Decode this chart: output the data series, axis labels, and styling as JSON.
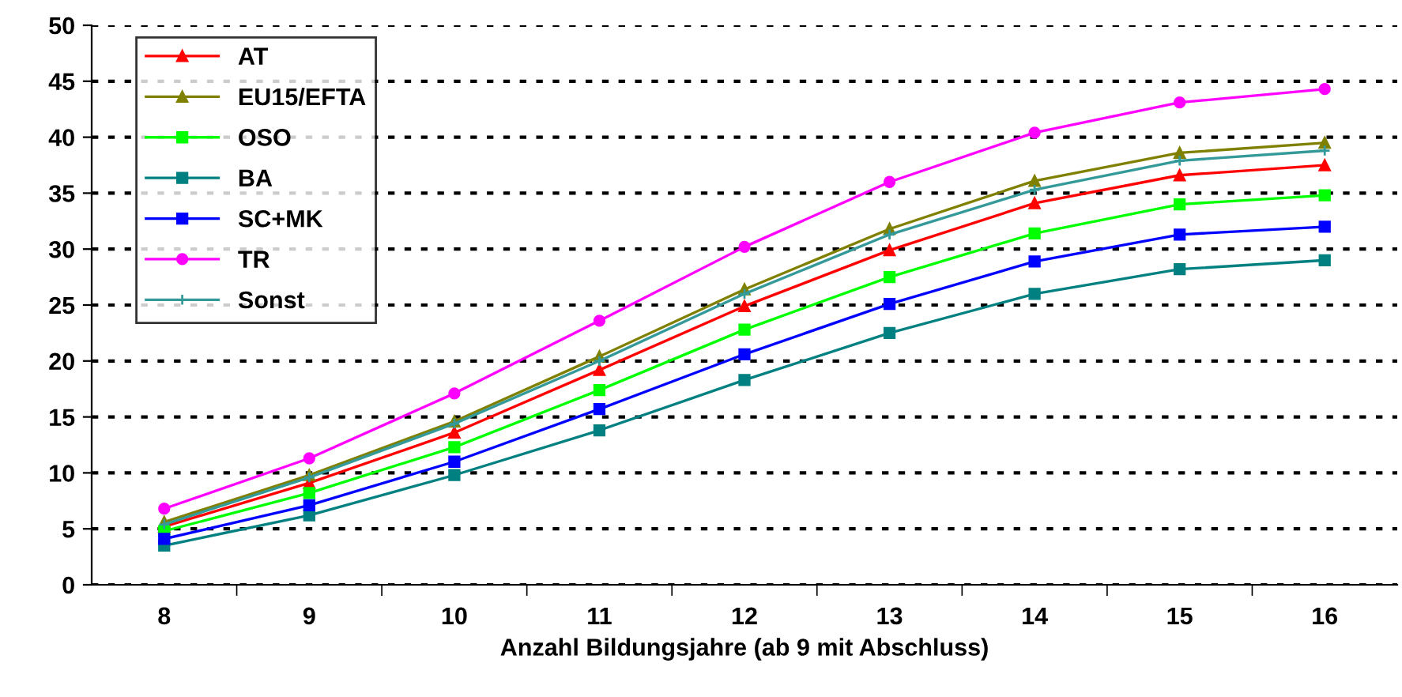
{
  "chart_data": {
    "type": "line",
    "xlabel": "Anzahl Bildungsjahre (ab 9 mit Abschluss)",
    "categories": [
      "8",
      "9",
      "10",
      "11",
      "12",
      "13",
      "14",
      "15",
      "16"
    ],
    "series": [
      {
        "name": "AT",
        "color": "#ff0000",
        "marker": "triangle",
        "values": [
          5.2,
          9.1,
          13.6,
          19.2,
          24.9,
          29.9,
          34.1,
          36.6,
          37.5
        ]
      },
      {
        "name": "EU15/EFTA",
        "color": "#808000",
        "marker": "triangle",
        "values": [
          5.6,
          9.8,
          14.6,
          20.4,
          26.4,
          31.8,
          36.1,
          38.6,
          39.5
        ]
      },
      {
        "name": "OSO",
        "color": "#00ff00",
        "marker": "square",
        "values": [
          4.8,
          8.2,
          12.3,
          17.4,
          22.8,
          27.5,
          31.4,
          34.0,
          34.8
        ]
      },
      {
        "name": "BA",
        "color": "#008080",
        "marker": "square",
        "values": [
          3.5,
          6.2,
          9.8,
          13.8,
          18.3,
          22.5,
          26.0,
          28.2,
          29.0
        ]
      },
      {
        "name": "SC+MK",
        "color": "#0000ff",
        "marker": "square",
        "values": [
          4.1,
          7.1,
          11.0,
          15.7,
          20.6,
          25.1,
          28.9,
          31.3,
          32.0
        ]
      },
      {
        "name": "TR",
        "color": "#ff00ff",
        "marker": "circle",
        "values": [
          6.8,
          11.3,
          17.1,
          23.6,
          30.2,
          36.0,
          40.4,
          43.1,
          44.3
        ]
      },
      {
        "name": "Sonst",
        "color": "#339999",
        "marker": "cross",
        "values": [
          5.4,
          9.6,
          14.4,
          20.0,
          26.0,
          31.3,
          35.3,
          37.9,
          38.8
        ]
      }
    ],
    "ylim": [
      0,
      50
    ],
    "yticks": [
      0,
      5,
      10,
      15,
      20,
      25,
      30,
      35,
      40,
      45,
      50
    ],
    "grid": "y",
    "legend": "top left",
    "line_style": "solid"
  }
}
